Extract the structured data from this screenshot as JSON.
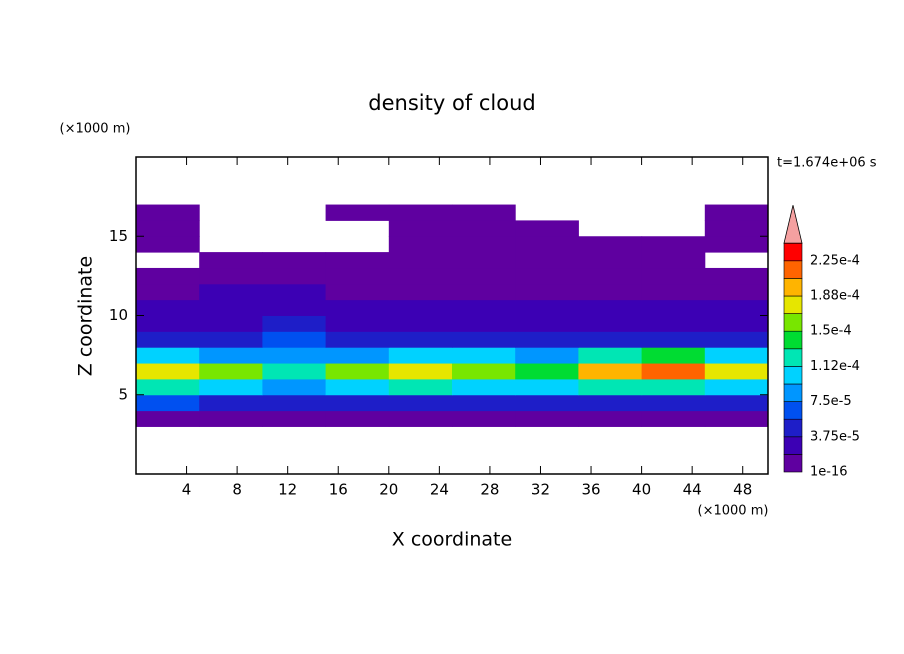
{
  "chart_data": {
    "type": "heatmap",
    "title": "density of cloud",
    "xlabel": "X coordinate",
    "ylabel": "Z coordinate",
    "xunit": "(×1000 m)",
    "yunit": "(×1000 m)",
    "annotation": "t=1.674e+06 s",
    "xlim": [
      0,
      50
    ],
    "ylim": [
      0,
      20
    ],
    "xticks": [
      4,
      8,
      12,
      16,
      20,
      24,
      28,
      32,
      36,
      40,
      44,
      48
    ],
    "yticks": [
      5,
      10,
      15
    ],
    "x": [
      0,
      5,
      10,
      15,
      20,
      25,
      30,
      35,
      40,
      45,
      50
    ],
    "z": [
      3,
      4,
      5,
      6,
      7,
      8,
      9,
      10,
      11,
      12,
      13,
      14,
      15,
      16,
      17
    ],
    "values": [
      [
        1.2e-05,
        1.2e-05,
        1.2e-05,
        1.2e-05,
        1.2e-05,
        1.2e-05,
        1.2e-05,
        1.2e-05,
        1.2e-05,
        1.2e-05
      ],
      [
        6e-05,
        5e-05,
        4e-05,
        4.5e-05,
        5e-05,
        5e-05,
        5e-05,
        4.5e-05,
        5e-05,
        5.5e-05
      ],
      [
        0.00012,
        0.00011,
        8e-05,
        0.00011,
        0.00012,
        0.00011,
        0.0001,
        0.00013,
        0.00013,
        0.00011
      ],
      [
        0.00017,
        0.00016,
        0.00012,
        0.00015,
        0.00017,
        0.00016,
        0.00014,
        0.0002,
        0.00021,
        0.00017
      ],
      [
        0.00011,
        9e-05,
        8e-05,
        9e-05,
        0.00011,
        0.0001,
        9e-05,
        0.00013,
        0.00014,
        0.00011
      ],
      [
        5e-05,
        5e-05,
        6e-05,
        4e-05,
        5e-05,
        4.5e-05,
        4.5e-05,
        5e-05,
        5e-05,
        4.5e-05
      ],
      [
        3.5e-05,
        3e-05,
        4e-05,
        3e-05,
        3e-05,
        3e-05,
        3e-05,
        3e-05,
        3e-05,
        3e-05
      ],
      [
        2.5e-05,
        2.2e-05,
        3.5e-05,
        2.2e-05,
        2.2e-05,
        2.5e-05,
        2.2e-05,
        2.2e-05,
        2.5e-05,
        2.2e-05
      ],
      [
        1.5e-05,
        2e-05,
        2e-05,
        1.5e-05,
        1.5e-05,
        1.5e-05,
        1.5e-05,
        1.5e-05,
        1.5e-05,
        1.5e-05
      ],
      [
        1e-05,
        1.2e-05,
        1e-05,
        1e-05,
        1e-05,
        1e-05,
        1e-05,
        1e-05,
        1e-05,
        1e-05
      ],
      [
        null,
        5e-06,
        5e-06,
        5e-06,
        5e-06,
        5e-06,
        5e-06,
        5e-06,
        5e-06,
        null
      ],
      [
        5e-06,
        null,
        null,
        null,
        5e-06,
        5e-06,
        5e-06,
        5e-06,
        5e-06,
        5e-06
      ],
      [
        5e-06,
        null,
        null,
        null,
        5e-06,
        5e-06,
        5e-06,
        null,
        null,
        5e-06
      ],
      [
        5e-06,
        null,
        null,
        5e-06,
        5e-06,
        5e-06,
        null,
        null,
        null,
        5e-06
      ]
    ],
    "colors": [
      "#5f00a0",
      "#3c00b4",
      "#1e1ec8",
      "#0050f0",
      "#0096ff",
      "#00d2ff",
      "#00e6b4",
      "#00dc32",
      "#78e600",
      "#e6e600",
      "#ffb400",
      "#ff6400",
      "#ff0000"
    ],
    "over_color": "#f5a0a0",
    "cticks": [
      {
        "value": 1e-16,
        "label": "1e-16"
      },
      {
        "value": 3.75e-05,
        "label": "3.75e-5"
      },
      {
        "value": 7.5e-05,
        "label": "7.5e-5"
      },
      {
        "value": 0.0001125,
        "label": "1.12e-4"
      },
      {
        "value": 0.00015,
        "label": "1.5e-4"
      },
      {
        "value": 0.0001875,
        "label": "1.88e-4"
      },
      {
        "value": 0.000225,
        "label": "2.25e-4"
      }
    ]
  }
}
